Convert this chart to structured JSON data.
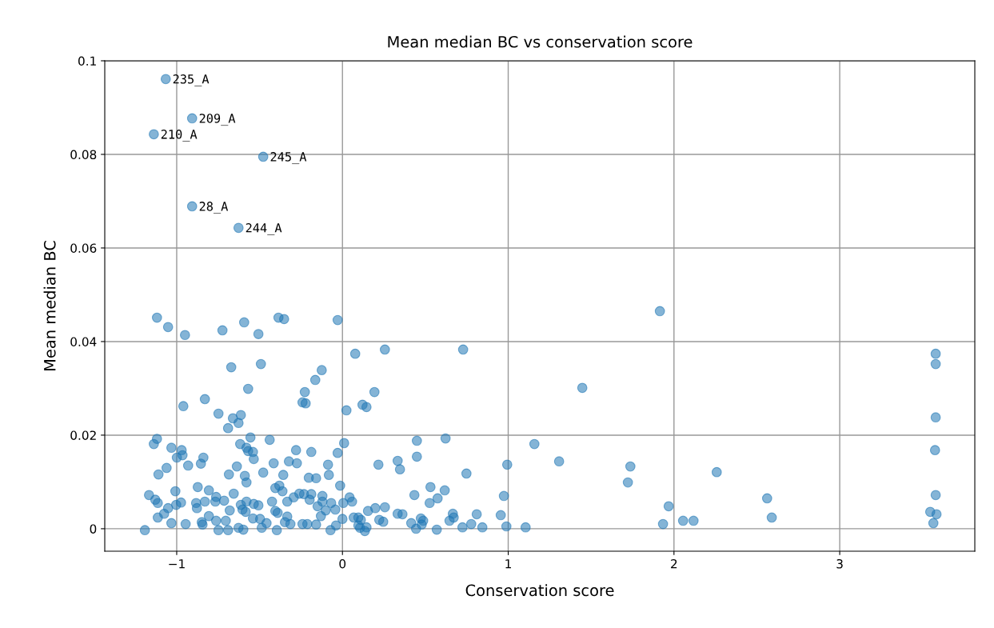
{
  "chart_data": {
    "type": "scatter",
    "title": "Mean median BC vs conservation score",
    "xlabel": "Conservation score",
    "ylabel": "Mean median BC",
    "xlim": [
      -1.434,
      3.815
    ],
    "ylim": [
      -0.0048,
      0.1
    ],
    "xticks": [
      {
        "value": -1,
        "label": "−1"
      },
      0,
      1,
      2,
      3
    ],
    "yticks": [
      0,
      0.02,
      0.04,
      0.06,
      0.08,
      0.1
    ],
    "grid": true,
    "marker": "circle",
    "annotations": [
      {
        "text": "235_A",
        "x": -1.066,
        "y": 0.0961
      },
      {
        "text": "209_A",
        "x": -0.907,
        "y": 0.0877
      },
      {
        "text": "210_A",
        "x": -1.138,
        "y": 0.0843
      },
      {
        "text": "245_A",
        "x": -0.478,
        "y": 0.0795
      },
      {
        "text": "28_A",
        "x": -0.907,
        "y": 0.0689
      },
      {
        "text": "244_A",
        "x": -0.627,
        "y": 0.0643
      }
    ],
    "series": [
      {
        "color": "#1f77b4",
        "x": [
          -1.066,
          -0.907,
          -1.138,
          -0.478,
          -0.907,
          -0.627,
          -1.119,
          -1.052,
          -0.95,
          -0.724,
          -0.593,
          -0.507,
          -0.386,
          -0.352,
          -0.029,
          1.915,
          0.077,
          0.256,
          0.728,
          3.579,
          3.579,
          3.579,
          3.575,
          3.579,
          3.546,
          3.584,
          3.565,
          1.447,
          -0.671,
          -0.569,
          -0.83,
          -0.96,
          -0.748,
          -0.661,
          -0.613,
          -0.627,
          -0.69,
          -1.119,
          -1.138,
          -1.032,
          -0.97,
          -0.965,
          -0.999,
          -0.839,
          -0.854,
          -0.931,
          -0.617,
          -0.579,
          -0.569,
          -0.637,
          -1.061,
          -1.11,
          -0.685,
          -0.589,
          -0.579,
          -1.008,
          -0.873,
          -0.806,
          -0.656,
          -1.167,
          -1.129,
          -1.114,
          -0.974,
          -1.003,
          -0.883,
          -0.878,
          -0.83,
          -0.762,
          -0.767,
          -0.714,
          -0.613,
          -0.579,
          -0.68,
          -0.603,
          -1.052,
          -1.076,
          -1.114,
          -0.806,
          -0.762,
          -0.849,
          -0.844,
          -0.704,
          -0.584,
          -1.032,
          -0.946,
          -1.192,
          -0.748,
          -0.69,
          -0.627,
          -0.598,
          -0.492,
          -0.125,
          -0.164,
          -0.227,
          -0.241,
          -0.222,
          0.024,
          0.121,
          0.145,
          -0.555,
          -0.439,
          -0.54,
          -0.535,
          -0.28,
          -0.188,
          -0.029,
          0.01,
          -0.415,
          -0.323,
          -0.275,
          -0.087,
          -0.478,
          -0.357,
          -0.082,
          -0.203,
          -0.159,
          -0.014,
          -0.405,
          -0.381,
          -0.362,
          -0.425,
          -0.333,
          -0.294,
          -0.26,
          -0.232,
          -0.188,
          -0.198,
          -0.121,
          -0.121,
          -0.068,
          -0.043,
          0.005,
          0.043,
          0.058,
          -0.535,
          -0.507,
          -0.15,
          -0.101,
          -0.405,
          -0.391,
          -0.13,
          -0.333,
          -0.54,
          -0.497,
          -0.458,
          -0.347,
          -0.314,
          -0.241,
          -0.212,
          -0.159,
          -0.072,
          -0.039,
          0.0,
          -0.396,
          -0.487,
          0.068,
          0.111,
          0.145,
          0.106,
          0.193,
          0.449,
          0.622,
          0.449,
          0.217,
          0.333,
          0.347,
          0.748,
          0.994,
          0.531,
          0.434,
          0.617,
          0.574,
          0.526,
          0.974,
          0.256,
          0.198,
          0.154,
          0.333,
          0.362,
          0.666,
          0.81,
          0.955,
          0.096,
          0.222,
          0.246,
          0.415,
          0.473,
          0.487,
          0.478,
          0.646,
          0.671,
          0.777,
          0.444,
          0.569,
          0.724,
          0.844,
          0.989,
          0.135,
          0.096,
          1.158,
          1.307,
          1.737,
          1.722,
          2.258,
          2.562,
          1.968,
          2.59,
          1.934,
          2.055,
          2.118,
          1.105
        ],
        "values": [
          0.0961,
          0.0877,
          0.0843,
          0.0795,
          0.0689,
          0.0643,
          0.0451,
          0.0431,
          0.0414,
          0.0424,
          0.0441,
          0.0416,
          0.0451,
          0.0448,
          0.0446,
          0.0465,
          0.0374,
          0.0383,
          0.0383,
          0.0374,
          0.0352,
          0.0238,
          0.0168,
          0.0072,
          0.0036,
          0.0031,
          0.0012,
          0.0301,
          0.0345,
          0.0299,
          0.0277,
          0.0262,
          0.0246,
          0.0236,
          0.0243,
          0.0226,
          0.0215,
          0.0192,
          0.0181,
          0.0173,
          0.0168,
          0.0157,
          0.0152,
          0.0152,
          0.0139,
          0.0135,
          0.0181,
          0.0173,
          0.0166,
          0.0133,
          0.013,
          0.0116,
          0.0116,
          0.0113,
          0.0099,
          0.008,
          0.0089,
          0.0082,
          0.0075,
          0.0072,
          0.0062,
          0.0055,
          0.0056,
          0.0051,
          0.0055,
          0.0044,
          0.0058,
          0.0068,
          0.0058,
          0.006,
          0.0051,
          0.0058,
          0.0039,
          0.0041,
          0.0044,
          0.0032,
          0.0024,
          0.0027,
          0.0017,
          0.0014,
          0.0009,
          0.0017,
          0.0036,
          0.0012,
          0.001,
          -0.0003,
          -0.0003,
          -0.0003,
          0.0002,
          -0.0002,
          0.0352,
          0.0339,
          0.0318,
          0.0292,
          0.027,
          0.0268,
          0.0253,
          0.0265,
          0.026,
          0.0195,
          0.019,
          0.0164,
          0.0149,
          0.0168,
          0.0164,
          0.0162,
          0.0183,
          0.014,
          0.0144,
          0.014,
          0.0137,
          0.012,
          0.0115,
          0.0115,
          0.0109,
          0.0108,
          0.0092,
          0.0087,
          0.0092,
          0.008,
          0.0058,
          0.0058,
          0.0067,
          0.0075,
          0.0074,
          0.0074,
          0.0062,
          0.007,
          0.0058,
          0.0055,
          0.0041,
          0.0055,
          0.0067,
          0.0058,
          0.0053,
          0.005,
          0.0048,
          0.0039,
          0.0038,
          0.0034,
          0.0027,
          0.0026,
          0.0022,
          0.0021,
          0.0012,
          0.0014,
          0.001,
          0.001,
          0.001,
          0.0009,
          -0.0003,
          0.0007,
          0.0021,
          -0.0003,
          0.0002,
          0.0024,
          0.0019,
          0.0003,
          0.0002,
          0.0292,
          0.0188,
          0.0193,
          0.0154,
          0.0137,
          0.0145,
          0.0127,
          0.0118,
          0.0137,
          0.0089,
          0.0072,
          0.0082,
          0.0065,
          0.0055,
          0.007,
          0.0046,
          0.0044,
          0.0038,
          0.0032,
          0.0031,
          0.0032,
          0.0031,
          0.0029,
          0.0024,
          0.0019,
          0.0015,
          0.0012,
          0.0022,
          0.0017,
          0.0009,
          0.0017,
          0.0024,
          0.001,
          0.0,
          -0.0002,
          0.0003,
          0.0003,
          0.0005,
          -0.0005,
          0.0007,
          0.0181,
          0.0144,
          0.0133,
          0.0099,
          0.0121,
          0.0065,
          0.0048,
          0.0024,
          0.001,
          0.0017,
          0.0017,
          0.0003
        ]
      }
    ]
  }
}
